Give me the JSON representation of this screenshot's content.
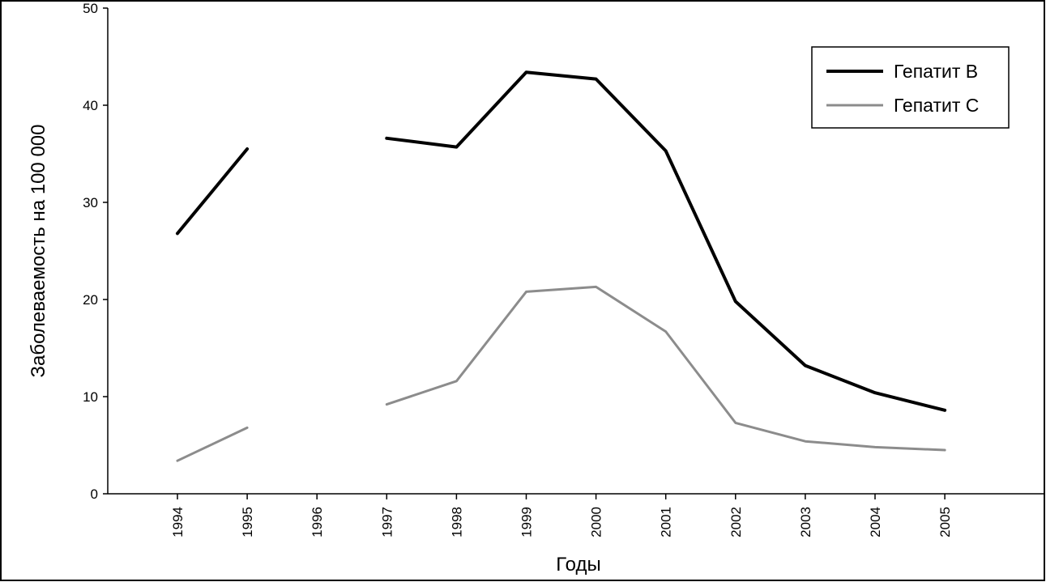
{
  "chart_data": {
    "type": "line",
    "categories": [
      "1994",
      "1995",
      "1996",
      "1997",
      "1998",
      "1999",
      "2000",
      "2001",
      "2002",
      "2003",
      "2004",
      "2005"
    ],
    "series": [
      {
        "name": "Гепатит В",
        "color": "#000000",
        "values": [
          26.8,
          35.5,
          null,
          36.6,
          35.7,
          43.4,
          42.7,
          35.3,
          19.8,
          13.2,
          10.4,
          8.6
        ]
      },
      {
        "name": "Гепатит С",
        "color": "#8c8c8c",
        "values": [
          3.4,
          6.8,
          null,
          9.2,
          11.6,
          20.8,
          21.3,
          16.7,
          7.3,
          5.4,
          4.8,
          4.5
        ]
      }
    ],
    "xlabel": "Годы",
    "ylabel": "Заболеваемость на 100 000",
    "ylim": [
      0,
      50
    ],
    "yticks": [
      0,
      10,
      20,
      30,
      40,
      50
    ],
    "grid": false,
    "legend_position": "top-right"
  }
}
